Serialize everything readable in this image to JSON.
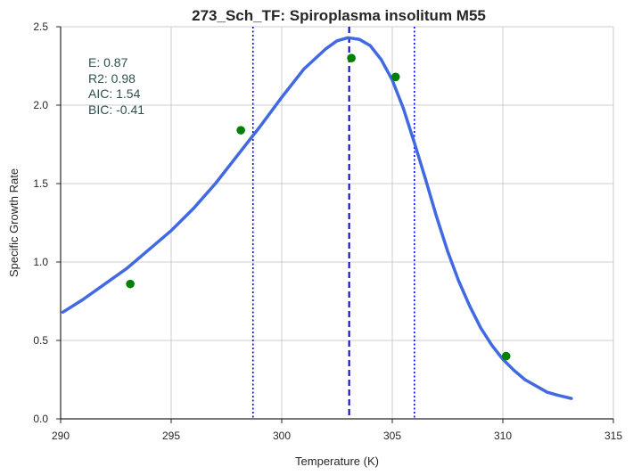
{
  "chart_data": {
    "type": "scatter",
    "title": "273_Sch_TF: Spiroplasma insolitum M55",
    "xlabel": "Temperature (K)",
    "ylabel": "Specific Growth Rate",
    "xlim": [
      290,
      315
    ],
    "ylim": [
      0,
      2.5
    ],
    "xticks": [
      "290",
      "295",
      "300",
      "305",
      "310",
      "315"
    ],
    "yticks": [
      "0.0",
      "0.5",
      "1.0",
      "1.5",
      "2.0",
      "2.5"
    ],
    "grid": true,
    "annotations": [
      "E:  0.87",
      "R2:  0.98",
      "AIC: 1.54",
      "BIC: -0.41"
    ],
    "series": [
      {
        "type": "scatter",
        "color": "#008000",
        "x": [
          293.15,
          298.15,
          303.15,
          305.15,
          310.15
        ],
        "y": [
          0.86,
          1.84,
          2.3,
          2.18,
          0.4
        ]
      },
      {
        "type": "line",
        "color": "#4169e1",
        "x": [
          290.1,
          291,
          292,
          293,
          294,
          295,
          296,
          297,
          298,
          299,
          300,
          301,
          302,
          302.5,
          303,
          303.5,
          304,
          304.5,
          305,
          305.5,
          306,
          306.5,
          307,
          307.5,
          308,
          308.5,
          309,
          309.5,
          310,
          310.5,
          311,
          311.5,
          312,
          312.5,
          313.1
        ],
        "y": [
          0.68,
          0.76,
          0.86,
          0.96,
          1.08,
          1.2,
          1.34,
          1.5,
          1.68,
          1.86,
          2.05,
          2.23,
          2.36,
          2.41,
          2.43,
          2.42,
          2.38,
          2.29,
          2.16,
          1.98,
          1.76,
          1.53,
          1.29,
          1.07,
          0.88,
          0.72,
          0.58,
          0.47,
          0.38,
          0.31,
          0.25,
          0.21,
          0.17,
          0.15,
          0.13
        ]
      }
    ],
    "vlines": [
      {
        "x": 303.05,
        "style": "dashed",
        "color": "#0000cd"
      },
      {
        "x": 298.7,
        "style": "dotted",
        "color": "#0000ff"
      },
      {
        "x": 306.0,
        "style": "dotted",
        "color": "#0000ff"
      }
    ]
  }
}
